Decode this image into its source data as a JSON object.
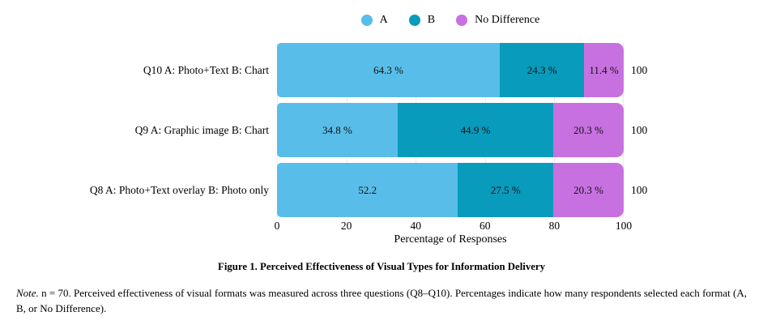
{
  "legend": {
    "items": [
      {
        "label": "A",
        "color": "#58BDE8"
      },
      {
        "label": "B",
        "color": "#089BBC"
      },
      {
        "label": "No Difference",
        "color": "#C770E0"
      }
    ]
  },
  "chart_data": {
    "type": "bar",
    "orientation": "horizontal",
    "stacked": true,
    "categories": [
      "Q10 A: Photo+Text B: Chart",
      "Q9 A: Graphic image B: Chart",
      "Q8 A: Photo+Text overlay B: Photo only"
    ],
    "series": [
      {
        "name": "A",
        "color": "#58BDE8",
        "values": [
          64.3,
          34.8,
          52.2
        ]
      },
      {
        "name": "B",
        "color": "#089BBC",
        "values": [
          24.3,
          44.9,
          27.5
        ]
      },
      {
        "name": "No Difference",
        "color": "#C770E0",
        "values": [
          11.4,
          20.3,
          20.3
        ]
      }
    ],
    "segment_labels": [
      [
        "64.3 %",
        "24.3 %",
        "11.4 %"
      ],
      [
        "34.8 %",
        "44.9 %",
        "20.3 %"
      ],
      [
        "52.2",
        "27.5 %",
        "20.3 %"
      ]
    ],
    "totals": [
      "100",
      "100",
      "100"
    ],
    "x_ticks": [
      "0",
      "20",
      "40",
      "60",
      "80",
      "100"
    ],
    "xlim": [
      0,
      100
    ],
    "xlabel": "Percentage of Responses",
    "grid": "vertical-light",
    "legend_position": "top-center"
  },
  "caption": "Figure 1. Perceived Effectiveness of Visual Types for Information Delivery",
  "note": {
    "label": "Note.",
    "text": "n = 70. Perceived effectiveness of visual formats was measured across three questions (Q8–Q10). Percentages indicate how many respondents selected each format (A, B, or No Difference)."
  }
}
